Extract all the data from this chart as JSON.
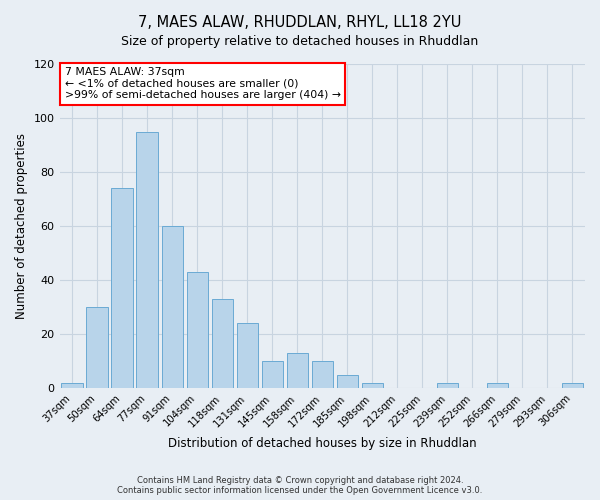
{
  "title": "7, MAES ALAW, RHUDDLAN, RHYL, LL18 2YU",
  "subtitle": "Size of property relative to detached houses in Rhuddlan",
  "xlabel": "Distribution of detached houses by size in Rhuddlan",
  "ylabel": "Number of detached properties",
  "bar_color": "#b8d4ea",
  "bar_edge_color": "#6aaad4",
  "categories": [
    "37sqm",
    "50sqm",
    "64sqm",
    "77sqm",
    "91sqm",
    "104sqm",
    "118sqm",
    "131sqm",
    "145sqm",
    "158sqm",
    "172sqm",
    "185sqm",
    "198sqm",
    "212sqm",
    "225sqm",
    "239sqm",
    "252sqm",
    "266sqm",
    "279sqm",
    "293sqm",
    "306sqm"
  ],
  "values": [
    2,
    30,
    74,
    95,
    60,
    43,
    33,
    24,
    10,
    13,
    10,
    5,
    2,
    0,
    0,
    2,
    0,
    2,
    0,
    0,
    2
  ],
  "ylim": [
    0,
    120
  ],
  "yticks": [
    0,
    20,
    40,
    60,
    80,
    100,
    120
  ],
  "annotation_line1": "7 MAES ALAW: 37sqm",
  "annotation_line2": "← <1% of detached houses are smaller (0)",
  "annotation_line3": ">99% of semi-detached houses are larger (404) →",
  "footer_line1": "Contains HM Land Registry data © Crown copyright and database right 2024.",
  "footer_line2": "Contains public sector information licensed under the Open Government Licence v3.0.",
  "background_color": "#e8eef4",
  "plot_background_color": "#e8eef4",
  "grid_color": "#c8d4e0"
}
